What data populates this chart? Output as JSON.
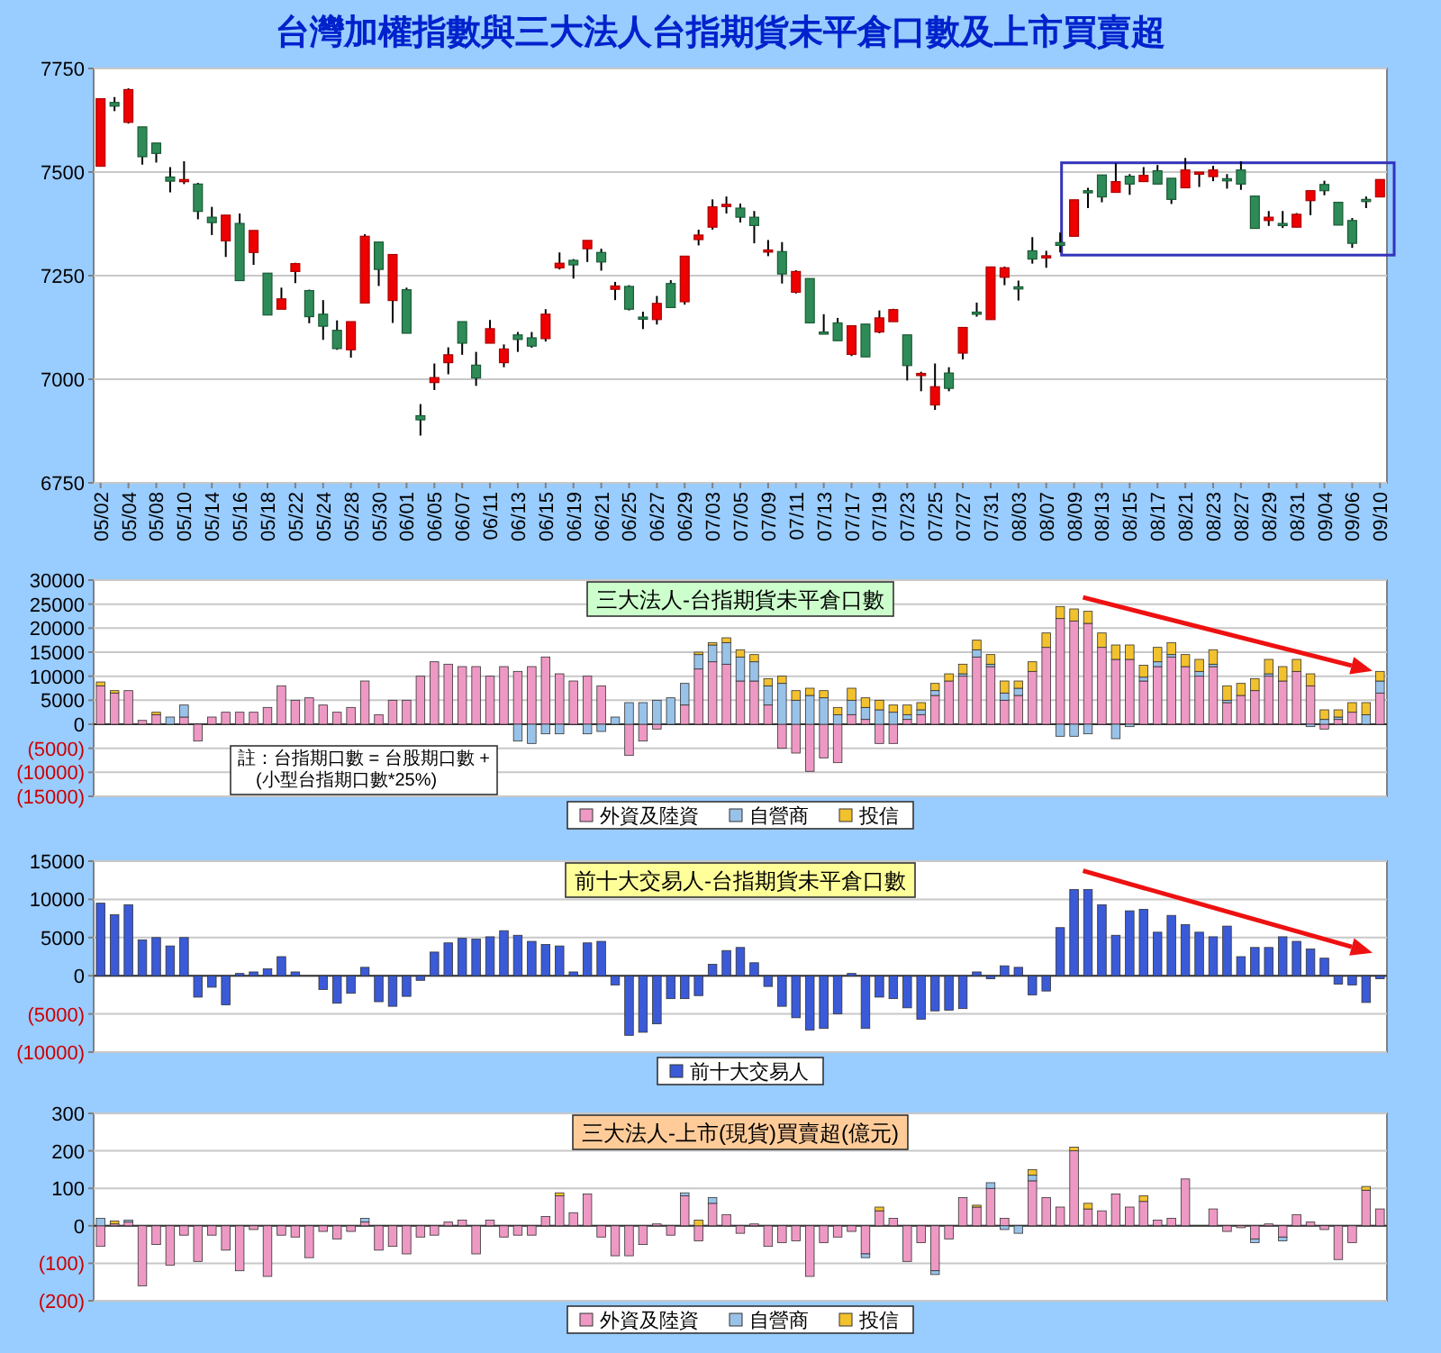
{
  "chart_data": [
    {
      "type": "candlestick",
      "title": "台灣加權指數與三大法人台指期貨未平倉口數及上市買賣超",
      "categories": [
        "05/02",
        null,
        "05/04",
        null,
        "05/08",
        null,
        "05/10",
        null,
        "05/14",
        null,
        "05/16",
        null,
        "05/18",
        null,
        "05/22",
        null,
        "05/24",
        null,
        "05/28",
        null,
        "05/30",
        null,
        "06/01",
        null,
        "06/05",
        null,
        "06/07",
        null,
        "06/11",
        null,
        "06/13",
        null,
        "06/15",
        null,
        "06/19",
        null,
        "06/21",
        null,
        "06/25",
        null,
        "06/27",
        null,
        "06/29",
        null,
        "07/03",
        null,
        "07/05",
        null,
        "07/09",
        null,
        "07/11",
        null,
        "07/13",
        null,
        "07/17",
        null,
        "07/19",
        null,
        "07/23",
        null,
        "07/25",
        null,
        "07/27",
        null,
        "07/31",
        null,
        "08/03",
        null,
        "08/07",
        null,
        "08/09",
        null,
        "08/13",
        null,
        "08/15",
        null,
        "08/17",
        null,
        "08/21",
        null,
        "08/23",
        null,
        "08/27",
        null,
        "08/29",
        null,
        "08/31",
        null,
        "09/04",
        null,
        "09/06",
        null,
        "09/10"
      ],
      "ohlc": [
        [
          7514,
          7677,
          7514,
          7677
        ],
        [
          7668,
          7681,
          7647,
          7659
        ],
        [
          7620,
          7702,
          7617,
          7699
        ],
        [
          7609,
          7609,
          7518,
          7537
        ],
        [
          7570,
          7570,
          7523,
          7545
        ],
        [
          7488,
          7512,
          7451,
          7478
        ],
        [
          7479,
          7526,
          7471,
          7482
        ],
        [
          7471,
          7474,
          7386,
          7405
        ],
        [
          7391,
          7416,
          7348,
          7378
        ],
        [
          7334,
          7396,
          7295,
          7396
        ],
        [
          7376,
          7400,
          7238,
          7238
        ],
        [
          7306,
          7359,
          7276,
          7359
        ],
        [
          7256,
          7256,
          7155,
          7155
        ],
        [
          7169,
          7221,
          7169,
          7194
        ],
        [
          7260,
          7281,
          7232,
          7279
        ],
        [
          7214,
          7216,
          7135,
          7151
        ],
        [
          7157,
          7191,
          7095,
          7128
        ],
        [
          7118,
          7142,
          7071,
          7074
        ],
        [
          7071,
          7139,
          7052,
          7139
        ],
        [
          7184,
          7350,
          7184,
          7345
        ],
        [
          7331,
          7331,
          7225,
          7265
        ],
        [
          7190,
          7301,
          7136,
          7301
        ],
        [
          7216,
          7221,
          7111,
          7111
        ],
        [
          6912,
          6940,
          6864,
          6902
        ],
        [
          6992,
          7038,
          6974,
          7004
        ],
        [
          7040,
          7077,
          7012,
          7059
        ],
        [
          7139,
          7139,
          7059,
          7087
        ],
        [
          7034,
          7066,
          6984,
          7003
        ],
        [
          7087,
          7143,
          7087,
          7122
        ],
        [
          7040,
          7084,
          7029,
          7073
        ],
        [
          7107,
          7114,
          7066,
          7096
        ],
        [
          7100,
          7114,
          7076,
          7080
        ],
        [
          7098,
          7169,
          7091,
          7157
        ],
        [
          7269,
          7306,
          7265,
          7280
        ],
        [
          7287,
          7290,
          7243,
          7276
        ],
        [
          7315,
          7335,
          7283,
          7335
        ],
        [
          7306,
          7315,
          7262,
          7283
        ],
        [
          7217,
          7235,
          7191,
          7225
        ],
        [
          7224,
          7227,
          7166,
          7169
        ],
        [
          7150,
          7163,
          7121,
          7146
        ],
        [
          7144,
          7201,
          7132,
          7183
        ],
        [
          7231,
          7239,
          7173,
          7173
        ],
        [
          7187,
          7297,
          7180,
          7297
        ],
        [
          7337,
          7361,
          7323,
          7348
        ],
        [
          7367,
          7434,
          7361,
          7416
        ],
        [
          7418,
          7441,
          7400,
          7422
        ],
        [
          7413,
          7424,
          7378,
          7391
        ],
        [
          7391,
          7406,
          7328,
          7371
        ],
        [
          7308,
          7336,
          7297,
          7312
        ],
        [
          7308,
          7331,
          7231,
          7254
        ],
        [
          7210,
          7263,
          7207,
          7260
        ],
        [
          7243,
          7243,
          7136,
          7136
        ],
        [
          7114,
          7157,
          7110,
          7110
        ],
        [
          7136,
          7148,
          7093,
          7093
        ],
        [
          7060,
          7129,
          7056,
          7129
        ],
        [
          7133,
          7133,
          7054,
          7054
        ],
        [
          7114,
          7166,
          7111,
          7148
        ],
        [
          7139,
          7170,
          7139,
          7168
        ],
        [
          7107,
          7107,
          6997,
          7033
        ],
        [
          7011,
          7018,
          6971,
          7014
        ],
        [
          6938,
          7038,
          6926,
          6982
        ],
        [
          7015,
          7029,
          6971,
          6978
        ],
        [
          7063,
          7125,
          7048,
          7125
        ],
        [
          7162,
          7185,
          7151,
          7158
        ],
        [
          7144,
          7271,
          7144,
          7271
        ],
        [
          7246,
          7272,
          7227,
          7269
        ],
        [
          7223,
          7238,
          7190,
          7220
        ],
        [
          7310,
          7343,
          7279,
          7290
        ],
        [
          7295,
          7310,
          7269,
          7298
        ],
        [
          7330,
          7354,
          7306,
          7323
        ],
        [
          7345,
          7433,
          7345,
          7433
        ],
        [
          7455,
          7462,
          7413,
          7451
        ],
        [
          7493,
          7493,
          7427,
          7440
        ],
        [
          7451,
          7521,
          7451,
          7477
        ],
        [
          7490,
          7495,
          7445,
          7471
        ],
        [
          7477,
          7512,
          7477,
          7492
        ],
        [
          7503,
          7517,
          7471,
          7471
        ],
        [
          7485,
          7485,
          7423,
          7434
        ],
        [
          7462,
          7534,
          7462,
          7505
        ],
        [
          7497,
          7500,
          7464,
          7500
        ],
        [
          7489,
          7515,
          7478,
          7505
        ],
        [
          7484,
          7495,
          7460,
          7479
        ],
        [
          7505,
          7526,
          7457,
          7471
        ],
        [
          7442,
          7442,
          7364,
          7364
        ],
        [
          7383,
          7406,
          7370,
          7391
        ],
        [
          7376,
          7406,
          7365,
          7372
        ],
        [
          7367,
          7401,
          7367,
          7398
        ],
        [
          7431,
          7455,
          7396,
          7455
        ],
        [
          7470,
          7479,
          7444,
          7455
        ],
        [
          7427,
          7427,
          7372,
          7372
        ],
        [
          7383,
          7389,
          7317,
          7328
        ],
        [
          7434,
          7441,
          7413,
          7430
        ],
        [
          7440,
          7482,
          7440,
          7482
        ]
      ],
      "ylim": [
        6750,
        7750
      ],
      "yticks": [
        6750,
        7000,
        7250,
        7500,
        7750
      ],
      "grid": "y"
    },
    {
      "type": "bar",
      "title": "三大法人-台指期貨未平倉口數",
      "stacked": true,
      "legend": "bottom",
      "grid": "y",
      "categories": [
        null,
        null,
        null,
        null,
        null,
        null,
        null,
        null,
        null,
        null,
        null,
        null,
        null,
        null,
        null,
        null,
        null,
        null,
        null,
        null,
        null,
        null,
        null,
        null,
        null,
        null,
        null,
        null,
        null,
        null,
        null,
        null,
        null,
        null,
        null,
        null,
        null,
        null,
        null,
        null,
        null,
        null,
        null,
        null,
        null,
        null,
        null,
        null,
        null,
        null,
        null,
        null,
        null,
        null,
        null,
        null,
        null,
        null,
        null,
        null,
        null,
        null,
        null,
        null,
        null,
        null,
        null,
        null,
        null,
        null,
        null,
        null,
        null,
        null,
        null,
        null,
        null,
        null,
        null,
        null,
        null,
        null,
        null,
        null,
        null,
        null,
        null,
        null,
        null,
        null,
        null,
        null,
        null
      ],
      "series": [
        {
          "name": "外資及陸資",
          "color": "#ee99c4",
          "values": [
            8000,
            6500,
            7000,
            800,
            2000,
            0,
            1500,
            -3500,
            1500,
            2500,
            2500,
            2500,
            3500,
            8000,
            5000,
            5500,
            4000,
            2500,
            3500,
            9000,
            2000,
            5000,
            5000,
            10000,
            13000,
            12500,
            12000,
            12000,
            10000,
            12000,
            11000,
            12000,
            14000,
            10500,
            9000,
            10000,
            8000,
            0,
            -6500,
            -3500,
            -1000,
            0,
            4000,
            11500,
            13000,
            12500,
            9000,
            9000,
            4000,
            -5000,
            -6000,
            -9800,
            -7000,
            -8000,
            2000,
            1000,
            -4000,
            -4000,
            1000,
            2000,
            6000,
            9000,
            10000,
            14000,
            12000,
            5000,
            6000,
            11000,
            16000,
            22000,
            21500,
            21000,
            16000,
            13500,
            13500,
            9000,
            12000,
            14000,
            12000,
            10000,
            12000,
            4500,
            6000,
            7000,
            10000,
            9000,
            11000,
            8000,
            -1000,
            1000,
            2500,
            0,
            6500
          ]
        },
        {
          "name": "自營商",
          "color": "#99c2e8",
          "values": [
            0,
            0,
            0,
            0,
            0,
            1500,
            2500,
            0,
            0,
            0,
            0,
            0,
            0,
            0,
            0,
            0,
            0,
            0,
            0,
            0,
            0,
            0,
            0,
            0,
            0,
            0,
            0,
            0,
            0,
            0,
            -3500,
            -4000,
            -2000,
            -2000,
            0,
            -2000,
            -1500,
            1500,
            4500,
            4500,
            5000,
            5500,
            4500,
            3000,
            3500,
            4500,
            5000,
            4000,
            4000,
            8500,
            5000,
            6000,
            5500,
            2000,
            3000,
            2500,
            3000,
            2500,
            1000,
            1000,
            1000,
            0,
            500,
            1500,
            500,
            1500,
            1500,
            0,
            0,
            -2500,
            -2500,
            -2000,
            0,
            -3000,
            -500,
            800,
            1000,
            500,
            0,
            1000,
            500,
            500,
            0,
            0,
            500,
            0,
            0,
            -500,
            1000,
            500,
            0,
            2000,
            2500
          ]
        },
        {
          "name": "投信",
          "color": "#f2c12e",
          "values": [
            800,
            500,
            0,
            0,
            500,
            0,
            0,
            0,
            0,
            0,
            0,
            0,
            0,
            0,
            0,
            0,
            0,
            0,
            0,
            0,
            0,
            0,
            0,
            0,
            0,
            0,
            0,
            0,
            0,
            0,
            0,
            0,
            0,
            0,
            0,
            0,
            0,
            0,
            0,
            0,
            0,
            0,
            0,
            500,
            500,
            1000,
            1500,
            1500,
            1500,
            1500,
            2000,
            1500,
            1500,
            1500,
            2500,
            2000,
            2000,
            1500,
            2000,
            1500,
            1500,
            1500,
            2000,
            2000,
            2000,
            2500,
            1500,
            2000,
            3000,
            2500,
            2500,
            2500,
            3000,
            3000,
            3000,
            2500,
            3000,
            2500,
            2500,
            2500,
            3000,
            3000,
            2500,
            2500,
            3000,
            3000,
            2500,
            2500,
            2000,
            1500,
            2000,
            2500,
            2000
          ]
        }
      ],
      "ylim": [
        -15000,
        30000
      ],
      "yticks": [
        {
          "value": -15000,
          "label": "(15000)"
        },
        {
          "value": -10000,
          "label": "(10000)"
        },
        {
          "value": -5000,
          "label": "(5000)"
        },
        0,
        5000,
        10000,
        15000,
        20000,
        25000,
        30000
      ],
      "annotations": [
        "註：台指期口數 = 台股期口數 +\n(小型台指期口數*25%)"
      ]
    },
    {
      "type": "bar",
      "title": "前十大交易人-台指期貨未平倉口數",
      "legend": "bottom",
      "grid": "y",
      "categories": [
        null,
        null,
        null,
        null,
        null,
        null,
        null,
        null,
        null,
        null,
        null,
        null,
        null,
        null,
        null,
        null,
        null,
        null,
        null,
        null,
        null,
        null,
        null,
        null,
        null,
        null,
        null,
        null,
        null,
        null,
        null,
        null,
        null,
        null,
        null,
        null,
        null,
        null,
        null,
        null,
        null,
        null,
        null,
        null,
        null,
        null,
        null,
        null,
        null,
        null,
        null,
        null,
        null,
        null,
        null,
        null,
        null,
        null,
        null,
        null,
        null,
        null,
        null,
        null,
        null,
        null,
        null,
        null,
        null,
        null,
        null,
        null,
        null,
        null,
        null,
        null,
        null,
        null,
        null,
        null,
        null,
        null,
        null,
        null,
        null,
        null,
        null,
        null,
        null,
        null,
        null,
        null,
        null
      ],
      "series": [
        {
          "name": "前十大交易人",
          "color": "#3a5ad8",
          "values": [
            9500,
            8000,
            9300,
            4700,
            5000,
            3900,
            5000,
            -2800,
            -1500,
            -3800,
            300,
            500,
            900,
            2500,
            500,
            null,
            -1800,
            -3600,
            -2300,
            1100,
            -3400,
            -4000,
            -2700,
            -600,
            3100,
            4300,
            4900,
            4800,
            5100,
            5900,
            5300,
            4500,
            4100,
            3900,
            500,
            4300,
            4500,
            -1200,
            -7800,
            -7400,
            -6300,
            -3000,
            -3000,
            -2600,
            1500,
            3300,
            3700,
            1700,
            -1400,
            -4000,
            -5500,
            -7100,
            -6900,
            -5000,
            300,
            -6900,
            -2800,
            -3000,
            -4200,
            -5700,
            -4600,
            -4500,
            -4300,
            500,
            -400,
            1300,
            1100,
            -2500,
            -2000,
            6300,
            11300,
            11300,
            9300,
            5300,
            8500,
            8700,
            5700,
            7900,
            6700,
            5700,
            5100,
            6500,
            2500,
            3700,
            3700,
            5100,
            4500,
            3500,
            2300,
            -1100,
            -1200,
            -3500,
            -400
          ]
        }
      ],
      "ylim": [
        -10000,
        15000
      ],
      "yticks": [
        {
          "value": -10000,
          "label": "(10000)"
        },
        {
          "value": -5000,
          "label": "(5000)"
        },
        0,
        5000,
        10000,
        15000
      ]
    },
    {
      "type": "bar",
      "title": "三大法人-上市(現貨)買賣超(億元)",
      "stacked": true,
      "legend": "bottom",
      "grid": "y",
      "categories": [
        null,
        null,
        null,
        null,
        null,
        null,
        null,
        null,
        null,
        null,
        null,
        null,
        null,
        null,
        null,
        null,
        null,
        null,
        null,
        null,
        null,
        null,
        null,
        null,
        null,
        null,
        null,
        null,
        null,
        null,
        null,
        null,
        null,
        null,
        null,
        null,
        null,
        null,
        null,
        null,
        null,
        null,
        null,
        null,
        null,
        null,
        null,
        null,
        null,
        null,
        null,
        null,
        null,
        null,
        null,
        null,
        null,
        null,
        null,
        null,
        null,
        null,
        null,
        null,
        null,
        null,
        null,
        null,
        null,
        null,
        null,
        null,
        null,
        null,
        null,
        null,
        null,
        null,
        null,
        null,
        null,
        null,
        null,
        null,
        null,
        null,
        null,
        null,
        null,
        null,
        null,
        null,
        null
      ],
      "series": [
        {
          "name": "外資及陸資",
          "color": "#ee99c4",
          "values": [
            -55,
            5,
            10,
            -160,
            -50,
            -105,
            -25,
            -95,
            -25,
            -65,
            -120,
            -10,
            -135,
            -25,
            -30,
            -85,
            -15,
            -35,
            -15,
            10,
            -65,
            -55,
            -75,
            -30,
            -25,
            10,
            15,
            -75,
            15,
            -30,
            -25,
            -25,
            25,
            80,
            35,
            85,
            -30,
            -80,
            -80,
            -50,
            5,
            -25,
            80,
            -40,
            60,
            30,
            -20,
            5,
            -55,
            -45,
            -40,
            -135,
            -45,
            -30,
            -15,
            -75,
            40,
            20,
            -95,
            -45,
            -120,
            -35,
            75,
            50,
            100,
            20,
            0,
            120,
            75,
            50,
            200,
            45,
            40,
            85,
            50,
            65,
            15,
            20,
            125,
            0,
            45,
            -15,
            -5,
            -35,
            5,
            -30,
            30,
            10,
            -10,
            -90,
            -45,
            95,
            45
          ]
        },
        {
          "name": "自營商",
          "color": "#99c2e8",
          "values": [
            20,
            0,
            5,
            0,
            0,
            0,
            0,
            0,
            0,
            0,
            0,
            0,
            0,
            0,
            0,
            0,
            0,
            0,
            0,
            10,
            0,
            0,
            0,
            0,
            0,
            0,
            0,
            0,
            0,
            0,
            0,
            0,
            0,
            0,
            0,
            0,
            0,
            0,
            0,
            0,
            0,
            0,
            8,
            0,
            15,
            0,
            0,
            0,
            0,
            0,
            0,
            0,
            0,
            0,
            0,
            -10,
            0,
            0,
            0,
            0,
            -10,
            0,
            0,
            0,
            15,
            -10,
            -20,
            15,
            0,
            0,
            0,
            0,
            0,
            0,
            0,
            0,
            0,
            0,
            0,
            0,
            0,
            0,
            0,
            -10,
            0,
            -10,
            0,
            0,
            0,
            0,
            0,
            0,
            0
          ]
        },
        {
          "name": "投信",
          "color": "#f2c12e",
          "values": [
            0,
            8,
            0,
            0,
            0,
            0,
            0,
            0,
            0,
            0,
            0,
            0,
            0,
            0,
            0,
            0,
            0,
            0,
            0,
            0,
            0,
            0,
            0,
            0,
            0,
            0,
            0,
            0,
            0,
            0,
            0,
            0,
            0,
            8,
            0,
            0,
            0,
            0,
            0,
            0,
            0,
            0,
            0,
            15,
            0,
            0,
            0,
            0,
            0,
            0,
            0,
            0,
            0,
            0,
            0,
            0,
            10,
            0,
            0,
            0,
            0,
            0,
            0,
            5,
            0,
            0,
            0,
            15,
            0,
            0,
            10,
            15,
            0,
            0,
            0,
            15,
            0,
            0,
            0,
            0,
            0,
            0,
            0,
            0,
            0,
            0,
            0,
            0,
            0,
            0,
            0,
            10,
            0
          ]
        }
      ],
      "ylim": [
        -200,
        300
      ],
      "yticks": [
        {
          "value": -200,
          "label": "(200)"
        },
        {
          "value": -100,
          "label": "(100)"
        },
        0,
        100,
        200,
        300
      ]
    }
  ]
}
